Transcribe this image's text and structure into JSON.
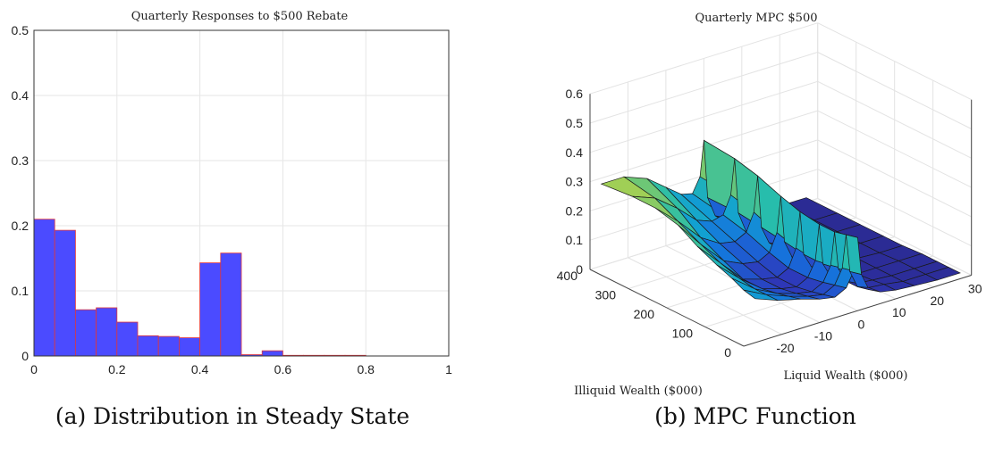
{
  "captions": {
    "a": "(a) Distribution in Steady State",
    "b": "(b) MPC Function"
  },
  "chart_data": [
    {
      "type": "bar",
      "title": "Quarterly Responses to $500 Rebate",
      "xlabel": "",
      "ylabel": "",
      "bin_width": 0.05,
      "bins": [
        0,
        0.05,
        0.1,
        0.15,
        0.2,
        0.25,
        0.3,
        0.35,
        0.4,
        0.45,
        0.5,
        0.55,
        0.6,
        0.65,
        0.7,
        0.75,
        0.8,
        0.85,
        0.9,
        0.95
      ],
      "values": [
        0.21,
        0.193,
        0.071,
        0.074,
        0.052,
        0.031,
        0.03,
        0.028,
        0.143,
        0.158,
        0.002,
        0.008,
        0.001,
        0.001,
        0.001,
        0.001,
        0.0,
        0.0,
        0.0,
        0.0
      ],
      "xlim": [
        0,
        1
      ],
      "ylim": [
        0,
        0.5
      ],
      "xticks": [
        "0",
        "0.2",
        "0.4",
        "0.6",
        "0.8",
        "1"
      ],
      "yticks": [
        "0",
        "0.1",
        "0.2",
        "0.3",
        "0.4",
        "0.5"
      ],
      "grid": true,
      "colors": {
        "bar_fill": "#4b4bff",
        "bar_edge": "#e0363c"
      }
    },
    {
      "type": "surface",
      "title": "Quarterly MPC $500",
      "xlabel": "Liquid Wealth ($000)",
      "ylabel": "Illiquid Wealth ($000)",
      "zlabel": "",
      "xlim": [
        -30,
        30
      ],
      "ylim": [
        0,
        400
      ],
      "zlim": [
        0,
        0.6
      ],
      "xticks": [
        "-20",
        "-10",
        "0",
        "10",
        "20",
        "30"
      ],
      "yticks": [
        "0",
        "100",
        "200",
        "300",
        "400"
      ],
      "zticks": [
        "0",
        "0.1",
        "0.2",
        "0.3",
        "0.4",
        "0.5",
        "0.6"
      ],
      "grid": true,
      "liquid_grid": [
        -27,
        -21,
        -15,
        -10,
        -6,
        -3,
        -1,
        0,
        1,
        3,
        6,
        10,
        15,
        21,
        27
      ],
      "illiquid_grid": [
        0,
        30,
        60,
        100,
        150,
        200,
        260,
        320,
        400
      ],
      "mpc": [
        [
          0.15,
          0.12,
          0.1,
          0.08,
          0.07,
          0.09,
          0.14,
          0.25,
          0.12,
          0.06,
          0.04,
          0.03,
          0.025,
          0.02,
          0.02
        ],
        [
          0.16,
          0.12,
          0.09,
          0.07,
          0.06,
          0.08,
          0.13,
          0.24,
          0.11,
          0.05,
          0.035,
          0.03,
          0.02,
          0.02,
          0.02
        ],
        [
          0.18,
          0.12,
          0.08,
          0.06,
          0.05,
          0.07,
          0.12,
          0.23,
          0.1,
          0.05,
          0.03,
          0.025,
          0.02,
          0.02,
          0.02
        ],
        [
          0.2,
          0.13,
          0.07,
          0.05,
          0.04,
          0.06,
          0.11,
          0.23,
          0.09,
          0.04,
          0.03,
          0.02,
          0.02,
          0.02,
          0.02
        ],
        [
          0.23,
          0.15,
          0.07,
          0.05,
          0.04,
          0.06,
          0.12,
          0.24,
          0.09,
          0.04,
          0.03,
          0.02,
          0.02,
          0.015,
          0.015
        ],
        [
          0.27,
          0.18,
          0.1,
          0.07,
          0.06,
          0.08,
          0.14,
          0.26,
          0.1,
          0.04,
          0.03,
          0.02,
          0.015,
          0.015,
          0.015
        ],
        [
          0.29,
          0.22,
          0.14,
          0.1,
          0.09,
          0.11,
          0.17,
          0.29,
          0.11,
          0.05,
          0.03,
          0.02,
          0.015,
          0.015,
          0.015
        ],
        [
          0.29,
          0.26,
          0.2,
          0.14,
          0.12,
          0.13,
          0.19,
          0.31,
          0.12,
          0.05,
          0.03,
          0.02,
          0.015,
          0.015,
          0.015
        ],
        [
          0.28,
          0.28,
          0.25,
          0.2,
          0.16,
          0.15,
          0.2,
          0.32,
          0.12,
          0.05,
          0.03,
          0.02,
          0.015,
          0.015,
          0.015
        ]
      ]
    }
  ]
}
